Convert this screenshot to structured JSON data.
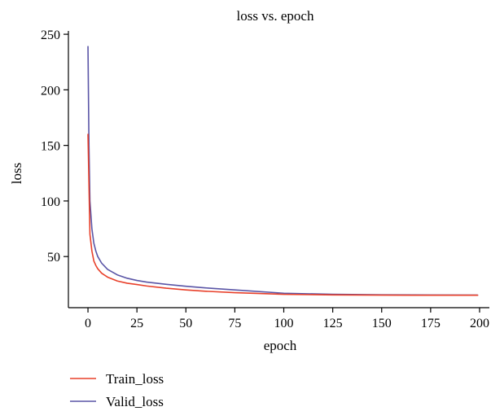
{
  "chart_data": {
    "type": "line",
    "title": "loss vs. epoch",
    "xlabel": "epoch",
    "ylabel": "loss",
    "xlim": [
      -10,
      205
    ],
    "ylim": [
      4,
      253
    ],
    "xticks": [
      0,
      25,
      50,
      75,
      100,
      125,
      150,
      175,
      200
    ],
    "yticks": [
      50,
      100,
      150,
      200,
      250
    ],
    "grid": false,
    "legend_position": "bottom-left, below plot",
    "series": [
      {
        "name": "Train_loss",
        "color": "#e8402a",
        "x": [
          0,
          1,
          2,
          3,
          4,
          5,
          7,
          10,
          15,
          20,
          25,
          30,
          40,
          50,
          60,
          75,
          100,
          125,
          150,
          175,
          199
        ],
        "y": [
          160,
          70,
          55,
          46,
          42,
          39,
          35,
          31.5,
          28,
          26,
          24.8,
          23.5,
          21.5,
          20,
          18.8,
          17.5,
          16,
          15.5,
          15.3,
          15.2,
          15.2
        ]
      },
      {
        "name": "Valid_loss",
        "color": "#5a55a6",
        "x": [
          0,
          0.5,
          1,
          2,
          3,
          4,
          5,
          7,
          10,
          15,
          20,
          25,
          30,
          40,
          50,
          60,
          75,
          100,
          125,
          150,
          175,
          199
        ],
        "y": [
          239,
          150,
          100,
          75,
          62,
          55,
          50,
          44,
          38.5,
          33.5,
          30.5,
          28.5,
          27,
          25,
          23.3,
          21.8,
          20,
          17,
          16,
          15.6,
          15.4,
          15.3
        ]
      }
    ]
  }
}
